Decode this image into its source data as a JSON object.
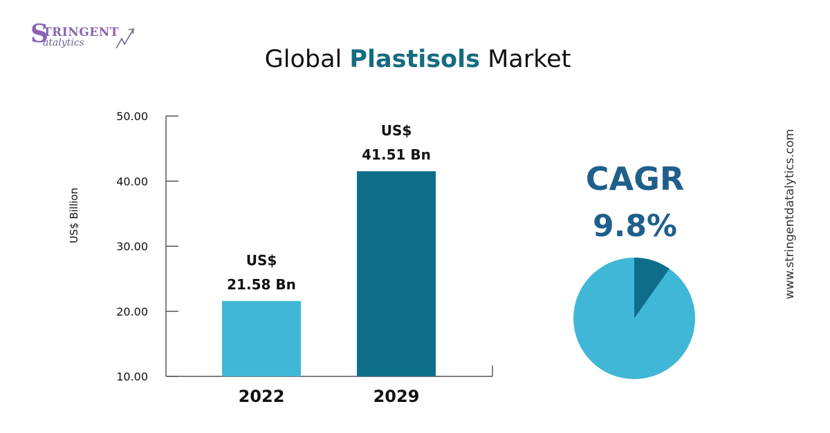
{
  "logo": {
    "brand_initial": "S",
    "brand_main": "TRINGENT",
    "brand_sub": "atalytics"
  },
  "title": {
    "prefix": "Global ",
    "highlight": "Plastisols",
    "suffix": " Market"
  },
  "colors": {
    "bar_2022": "#40b7d6",
    "bar_2029": "#0e6e89",
    "title_highlight": "#146c80",
    "cagr": "#1f5f8b",
    "pie_main": "#40b7d6",
    "pie_slice": "#0e6e89"
  },
  "chart_data": {
    "type": "bar",
    "categories": [
      "2022",
      "2029"
    ],
    "values": [
      21.58,
      41.51
    ],
    "data_labels": [
      [
        "US$",
        "21.58 Bn"
      ],
      [
        "US$",
        "41.51 Bn"
      ]
    ],
    "ylabel": "US$ Billion",
    "ylim": [
      10,
      50
    ],
    "yticks": [
      "10.00",
      "20.00",
      "30.00",
      "40.00",
      "50.00"
    ],
    "ytick_values": [
      10,
      20,
      30,
      40,
      50
    ],
    "grid": false
  },
  "cagr": {
    "label": "CAGR",
    "value": "9.8%",
    "pie_fraction": 0.098
  },
  "website": "www.stringentdatalytics.com"
}
